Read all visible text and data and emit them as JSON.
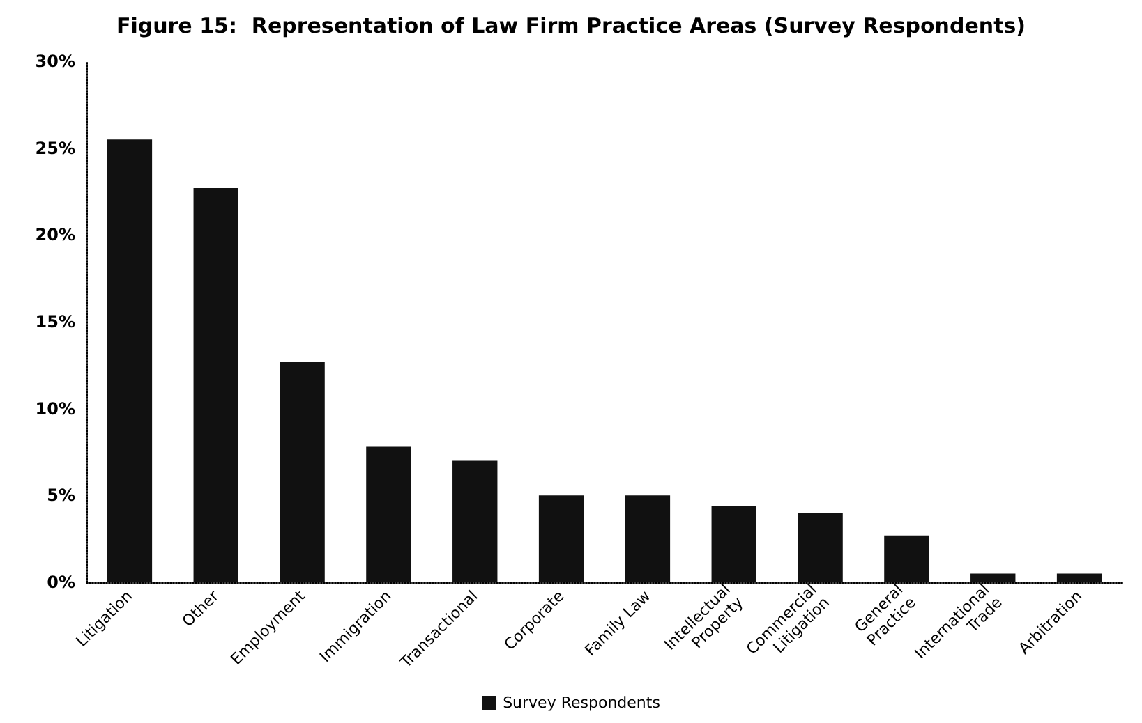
{
  "chart_data": {
    "type": "bar",
    "title": "Figure 15:  Representation of Law Firm Practice Areas (Survey Respondents)",
    "categories": [
      "Litigation",
      "Other",
      "Employment",
      "Immigration",
      "Transactional",
      "Corporate",
      "Family Law",
      "Intellectual\nProperty",
      "Commercial\nLitigation",
      "General\nPractice",
      "International\nTrade",
      "Arbitration"
    ],
    "series": [
      {
        "name": "Survey Respondents",
        "color": "#111111",
        "values": [
          25.5,
          22.7,
          12.7,
          7.8,
          7.0,
          5.0,
          5.0,
          4.4,
          4.0,
          2.7,
          0.5,
          0.5
        ]
      }
    ],
    "ylim": [
      0,
      30
    ],
    "yticks": [
      {
        "value": 0,
        "label": "0%"
      },
      {
        "value": 5,
        "label": "5%"
      },
      {
        "value": 10,
        "label": "10%"
      },
      {
        "value": 15,
        "label": "15%"
      },
      {
        "value": 20,
        "label": "20%"
      },
      {
        "value": 25,
        "label": "25%"
      },
      {
        "value": 30,
        "label": "30%"
      }
    ],
    "grid": false,
    "legend": "bottom"
  }
}
